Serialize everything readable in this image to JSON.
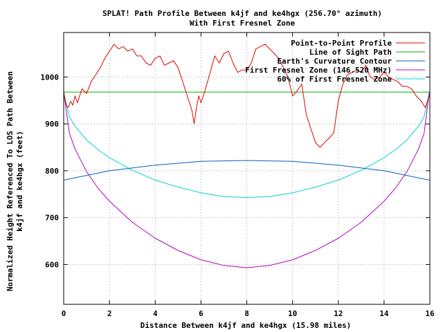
{
  "chart_data": {
    "type": "line",
    "title": "SPLAT! Path Profile Between k4jf and ke4hgx (256.70° azimuth)",
    "subtitle": "With First Fresnel Zone",
    "xlabel": "Distance Between k4jf and ke4hgx (15.98 miles)",
    "ylabel_line1": "Normalized Height Referenced To LOS Path Between",
    "ylabel_line2": "k4jf and ke4hgx (feet)",
    "xlim": [
      0,
      16
    ],
    "ylim": [
      515,
      1095
    ],
    "xticks": [
      0,
      2,
      4,
      6,
      8,
      10,
      12,
      14,
      16
    ],
    "yticks": [
      600,
      700,
      800,
      900,
      1000
    ],
    "grid": true,
    "legend_position": "top-right",
    "series": [
      {
        "name": "Point-to-Point Profile",
        "color": "#e00000",
        "x": [
          0,
          0.1,
          0.2,
          0.3,
          0.4,
          0.5,
          0.6,
          0.8,
          1.0,
          1.2,
          1.4,
          1.6,
          1.8,
          2.0,
          2.2,
          2.4,
          2.6,
          2.8,
          3.0,
          3.2,
          3.4,
          3.6,
          3.8,
          4.0,
          4.2,
          4.4,
          4.6,
          4.8,
          5.0,
          5.2,
          5.4,
          5.5,
          5.6,
          5.7,
          5.8,
          5.9,
          6.0,
          6.2,
          6.4,
          6.6,
          6.8,
          7.0,
          7.2,
          7.4,
          7.6,
          7.8,
          8.0,
          8.2,
          8.4,
          8.6,
          8.8,
          9.0,
          9.2,
          9.4,
          9.6,
          9.8,
          10.0,
          10.2,
          10.4,
          10.6,
          10.8,
          11.0,
          11.2,
          11.4,
          11.6,
          11.8,
          12.0,
          12.2,
          12.4,
          12.6,
          12.8,
          13.0,
          13.2,
          13.4,
          13.6,
          13.8,
          14.0,
          14.2,
          14.4,
          14.6,
          14.8,
          15.0,
          15.2,
          15.4,
          15.6,
          15.8,
          15.98
        ],
        "y": [
          968,
          940,
          935,
          948,
          940,
          960,
          945,
          975,
          965,
          990,
          1005,
          1020,
          1040,
          1055,
          1070,
          1060,
          1065,
          1055,
          1060,
          1045,
          1045,
          1030,
          1025,
          1040,
          1045,
          1025,
          1030,
          1035,
          1020,
          990,
          960,
          945,
          930,
          900,
          935,
          960,
          945,
          975,
          1010,
          1045,
          1030,
          1050,
          1055,
          1030,
          1010,
          1015,
          1015,
          1030,
          1060,
          1065,
          1070,
          1060,
          1050,
          1040,
          1020,
          1000,
          960,
          970,
          985,
          920,
          890,
          860,
          850,
          860,
          870,
          880,
          950,
          985,
          1005,
          1010,
          1015,
          1010,
          1025,
          1000,
          995,
          1000,
          1010,
          1000,
          995,
          990,
          980,
          980,
          975,
          960,
          950,
          935,
          960
        ]
      },
      {
        "name": "Line of Sight Path",
        "color": "#00b000",
        "x": [
          0,
          15.98
        ],
        "y": [
          968,
          968
        ]
      },
      {
        "name": "Earth's Curvature Contour",
        "color": "#0060c0",
        "x": [
          0,
          2,
          4,
          6,
          8,
          10,
          12,
          14,
          15.98
        ],
        "y": [
          780,
          800,
          812,
          820,
          822,
          820,
          812,
          800,
          780
        ]
      },
      {
        "name": "First Fresnel Zone (146.520 MHz)",
        "color": "#b000c0",
        "x": [
          0,
          0.25,
          0.5,
          1,
          1.5,
          2,
          3,
          4,
          5,
          6,
          7,
          8,
          9,
          10,
          11,
          12,
          13,
          14,
          14.5,
          15,
          15.5,
          15.75,
          15.98
        ],
        "y": [
          968,
          880,
          846,
          798,
          763,
          735,
          690,
          656,
          630,
          610,
          598,
          593,
          598,
          610,
          630,
          656,
          690,
          735,
          763,
          798,
          846,
          880,
          968
        ]
      },
      {
        "name": "60% of First Fresnel Zone",
        "color": "#00d0d0",
        "x": [
          0,
          0.25,
          0.5,
          1,
          1.5,
          2,
          3,
          4,
          5,
          6,
          7,
          8,
          9,
          10,
          11,
          12,
          13,
          14,
          14.5,
          15,
          15.5,
          15.75,
          15.98
        ],
        "y": [
          968,
          915,
          895,
          866,
          845,
          828,
          801,
          780,
          765,
          753,
          745,
          743,
          745,
          753,
          765,
          780,
          801,
          828,
          845,
          866,
          895,
          915,
          968
        ]
      }
    ]
  }
}
